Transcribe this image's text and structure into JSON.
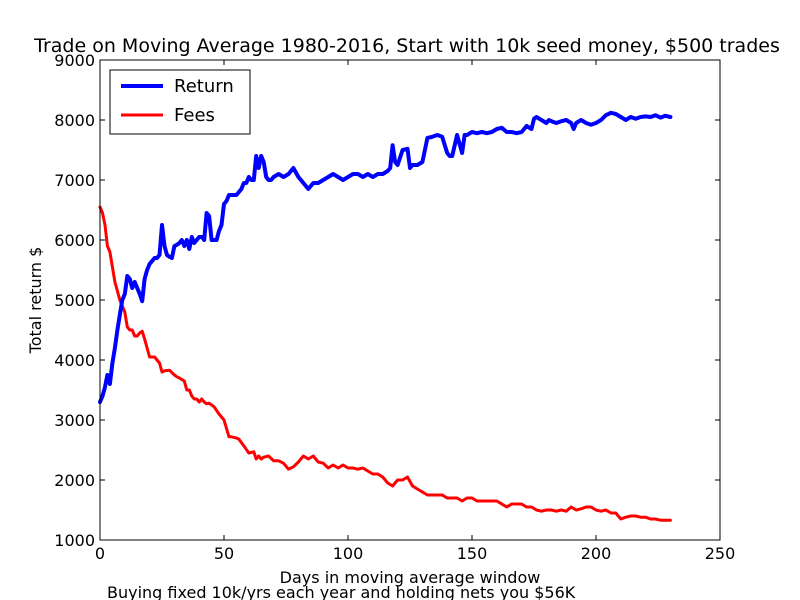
{
  "chart_data": {
    "type": "line",
    "title": "Trade on Moving Average 1980-2016, Start with 10k seed money, $500 trades",
    "xlabel": "Days in moving average window",
    "ylabel": "Total return $",
    "footnote": "Buying fixed 10k/yrs each year and holding nets you $56K",
    "xlim": [
      0,
      250
    ],
    "ylim": [
      1000,
      9000
    ],
    "xticks": [
      0,
      50,
      100,
      150,
      200,
      250
    ],
    "yticks": [
      1000,
      2000,
      3000,
      4000,
      5000,
      6000,
      7000,
      8000,
      9000
    ],
    "grid": false,
    "legend_position": "top-left",
    "series": [
      {
        "name": "Return",
        "color": "#0000ff",
        "x": [
          0,
          1,
          2,
          3,
          4,
          5,
          6,
          7,
          8,
          9,
          10,
          11,
          12,
          13,
          14,
          15,
          16,
          17,
          18,
          19,
          20,
          21,
          22,
          23,
          24,
          25,
          26,
          27,
          28,
          29,
          30,
          31,
          32,
          33,
          34,
          35,
          36,
          37,
          38,
          39,
          40,
          41,
          42,
          43,
          44,
          45,
          46,
          47,
          48,
          49,
          50,
          51,
          52,
          53,
          54,
          55,
          56,
          57,
          58,
          59,
          60,
          61,
          62,
          63,
          64,
          65,
          66,
          67,
          68,
          69,
          70,
          72,
          74,
          76,
          78,
          80,
          82,
          84,
          86,
          88,
          90,
          92,
          94,
          96,
          98,
          100,
          102,
          104,
          106,
          108,
          110,
          112,
          114,
          116,
          117,
          118,
          119,
          120,
          122,
          124,
          125,
          126,
          128,
          130,
          132,
          134,
          136,
          138,
          140,
          141,
          142,
          144,
          146,
          147,
          148,
          150,
          152,
          154,
          156,
          158,
          160,
          162,
          164,
          166,
          168,
          170,
          172,
          174,
          175,
          176,
          178,
          180,
          181,
          182,
          184,
          186,
          188,
          190,
          191,
          192,
          194,
          196,
          198,
          200,
          202,
          204,
          206,
          208,
          210,
          212,
          214,
          216,
          218,
          220,
          222,
          224,
          226,
          228,
          230
        ],
        "y": [
          3300,
          3400,
          3550,
          3750,
          3600,
          3950,
          4200,
          4500,
          4750,
          5000,
          5100,
          5400,
          5350,
          5200,
          5300,
          5200,
          5100,
          4980,
          5350,
          5500,
          5600,
          5650,
          5700,
          5700,
          5750,
          6250,
          5900,
          5750,
          5720,
          5700,
          5900,
          5920,
          5950,
          6000,
          5900,
          6000,
          5850,
          6050,
          5950,
          6000,
          6050,
          6050,
          6000,
          6450,
          6400,
          6000,
          6000,
          6000,
          6150,
          6250,
          6600,
          6650,
          6750,
          6750,
          6750,
          6750,
          6800,
          6850,
          6950,
          6950,
          7050,
          7000,
          7000,
          7400,
          7200,
          7400,
          7300,
          7050,
          7000,
          7000,
          7050,
          7100,
          7050,
          7100,
          7200,
          7050,
          6950,
          6850,
          6950,
          6950,
          7000,
          7050,
          7100,
          7050,
          7000,
          7050,
          7100,
          7100,
          7050,
          7100,
          7050,
          7100,
          7100,
          7150,
          7200,
          7580,
          7300,
          7250,
          7500,
          7520,
          7200,
          7250,
          7250,
          7300,
          7700,
          7720,
          7750,
          7720,
          7450,
          7400,
          7400,
          7750,
          7450,
          7750,
          7750,
          7800,
          7780,
          7800,
          7780,
          7800,
          7850,
          7870,
          7800,
          7800,
          7780,
          7800,
          7900,
          7850,
          8020,
          8050,
          8000,
          7950,
          8000,
          7980,
          7950,
          7980,
          8000,
          7950,
          7850,
          7950,
          8000,
          7950,
          7920,
          7950,
          8000,
          8080,
          8120,
          8100,
          8050,
          8000,
          8050,
          8020,
          8050,
          8060,
          8050,
          8080,
          8040,
          8070,
          8050
        ]
      },
      {
        "name": "Fees",
        "color": "#ff0000",
        "x": [
          0,
          1,
          2,
          3,
          4,
          5,
          6,
          7,
          8,
          9,
          10,
          11,
          12,
          13,
          14,
          15,
          16,
          17,
          18,
          19,
          20,
          22,
          24,
          25,
          26,
          28,
          30,
          31,
          32,
          34,
          35,
          36,
          37,
          38,
          39,
          40,
          41,
          42,
          43,
          44,
          45,
          46,
          48,
          50,
          52,
          53,
          54,
          55,
          56,
          58,
          60,
          62,
          63,
          64,
          65,
          66,
          68,
          70,
          72,
          74,
          76,
          78,
          80,
          82,
          84,
          86,
          88,
          90,
          92,
          94,
          96,
          98,
          100,
          102,
          104,
          106,
          108,
          110,
          112,
          114,
          116,
          118,
          120,
          122,
          124,
          126,
          128,
          130,
          132,
          134,
          136,
          138,
          140,
          142,
          144,
          146,
          148,
          150,
          152,
          154,
          156,
          158,
          160,
          162,
          164,
          166,
          168,
          170,
          172,
          174,
          176,
          178,
          180,
          182,
          184,
          186,
          188,
          190,
          192,
          194,
          196,
          198,
          200,
          202,
          204,
          206,
          208,
          210,
          212,
          214,
          216,
          218,
          220,
          222,
          224,
          226,
          228,
          230
        ],
        "y": [
          6550,
          6450,
          6250,
          5900,
          5800,
          5550,
          5300,
          5150,
          5000,
          4900,
          4800,
          4550,
          4500,
          4500,
          4400,
          4400,
          4450,
          4480,
          4350,
          4200,
          4050,
          4050,
          3950,
          3800,
          3820,
          3830,
          3750,
          3720,
          3700,
          3650,
          3500,
          3500,
          3400,
          3350,
          3350,
          3300,
          3350,
          3300,
          3270,
          3280,
          3250,
          3220,
          3100,
          3000,
          2720,
          2720,
          2710,
          2700,
          2680,
          2570,
          2450,
          2470,
          2350,
          2400,
          2350,
          2380,
          2400,
          2320,
          2320,
          2280,
          2180,
          2220,
          2300,
          2400,
          2350,
          2400,
          2300,
          2280,
          2200,
          2250,
          2200,
          2250,
          2200,
          2200,
          2180,
          2200,
          2150,
          2100,
          2100,
          2050,
          1950,
          1900,
          2000,
          2000,
          2050,
          1900,
          1850,
          1800,
          1750,
          1750,
          1750,
          1750,
          1700,
          1700,
          1700,
          1650,
          1700,
          1700,
          1650,
          1650,
          1650,
          1650,
          1650,
          1600,
          1550,
          1600,
          1600,
          1600,
          1550,
          1550,
          1500,
          1480,
          1500,
          1500,
          1480,
          1500,
          1480,
          1550,
          1500,
          1520,
          1550,
          1550,
          1500,
          1480,
          1500,
          1450,
          1450,
          1350,
          1380,
          1400,
          1400,
          1380,
          1380,
          1350,
          1350,
          1330,
          1330,
          1330
        ]
      }
    ]
  }
}
